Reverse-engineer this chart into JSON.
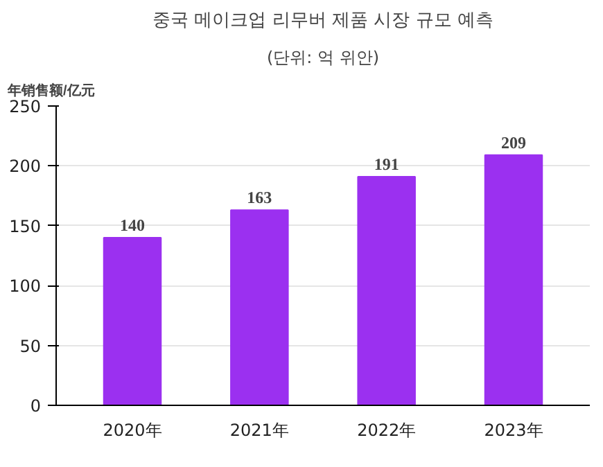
{
  "chart_data": {
    "type": "bar",
    "title": "중국 메이크업 리무버 제품 시장 규모 예측",
    "subtitle": "(단위: 억 위안)",
    "ylabel": "年销售额/亿元",
    "categories": [
      "2020年",
      "2021年",
      "2022年",
      "2023年"
    ],
    "values": [
      140,
      163,
      191,
      209
    ],
    "color": "#9b30f0",
    "ylim": [
      0,
      250
    ],
    "yticks": [
      0,
      50,
      100,
      150,
      200,
      250
    ],
    "grid": "y",
    "data_labels": true
  }
}
